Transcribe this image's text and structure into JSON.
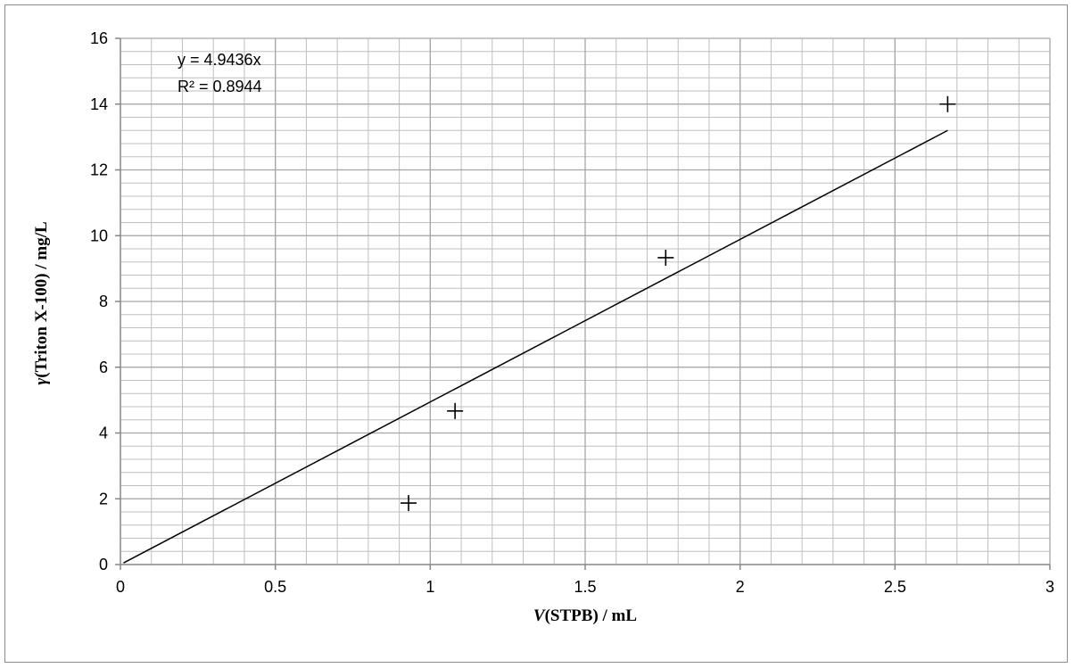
{
  "chart_data": {
    "type": "scatter",
    "title": "",
    "xlabel": {
      "italic": "V",
      "rest": "(STPB) / mL"
    },
    "ylabel": {
      "italic": "γ",
      "rest": "(Triton X-100) / mg/L"
    },
    "xlim": [
      0,
      3
    ],
    "ylim": [
      0,
      16
    ],
    "x_major_ticks": [
      0,
      0.5,
      1,
      1.5,
      2,
      2.5,
      3
    ],
    "x_tick_labels": [
      "0",
      "0.5",
      "1",
      "1.5",
      "2",
      "2.5",
      "3"
    ],
    "y_major_ticks": [
      0,
      2,
      4,
      6,
      8,
      10,
      12,
      14,
      16
    ],
    "y_tick_labels": [
      "0",
      "2",
      "4",
      "6",
      "8",
      "10",
      "12",
      "14",
      "16"
    ],
    "x_minor_step": 0.1,
    "y_minor_step": 0.4,
    "grid": true,
    "marker": "plus",
    "points": [
      {
        "x": 0.93,
        "y": 1.87
      },
      {
        "x": 1.08,
        "y": 4.67
      },
      {
        "x": 1.76,
        "y": 9.33
      },
      {
        "x": 2.67,
        "y": 14.0
      }
    ],
    "trendline": {
      "type": "linear",
      "slope": 4.9436,
      "intercept": 0,
      "x_range": [
        0.01,
        2.67
      ],
      "equation_label": "y = 4.9436x",
      "r2_label": "R² = 0.8944"
    },
    "colors": {
      "major_grid": "#a6a6a6",
      "minor_grid": "#bfbfbf",
      "axis": "#868686",
      "marker": "#000000",
      "trendline": "#000000"
    }
  }
}
